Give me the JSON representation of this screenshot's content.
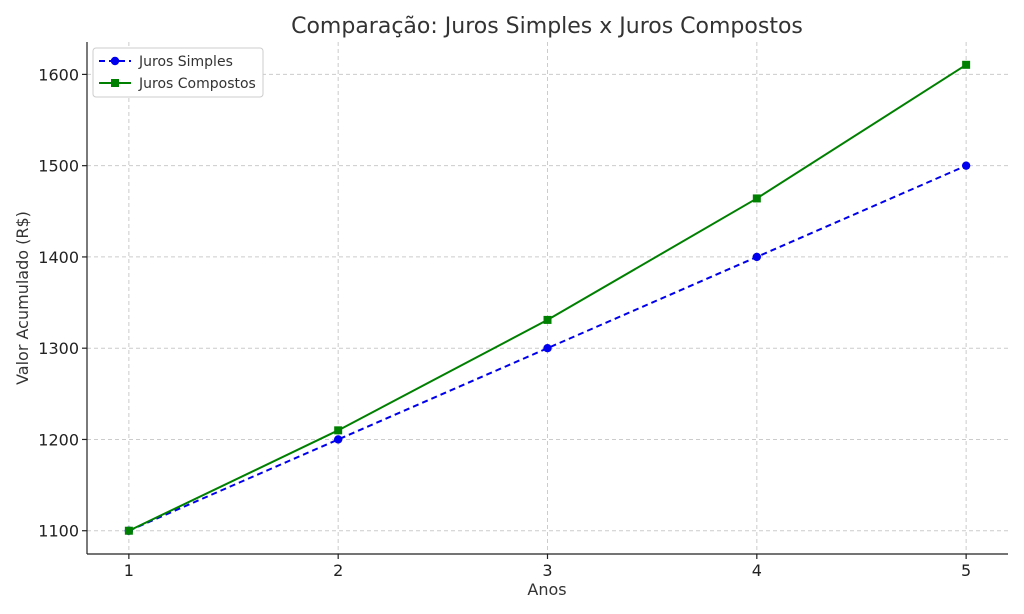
{
  "chart_data": {
    "type": "line",
    "title": "Comparação: Juros Simples x Juros Compostos",
    "xlabel": "Anos",
    "ylabel": "Valor Acumulado (R$)",
    "x": [
      1,
      2,
      3,
      4,
      5
    ],
    "xlim": [
      0.8,
      5.2
    ],
    "ylim": [
      1074.5,
      1635.5
    ],
    "xticks": [
      1,
      2,
      3,
      4,
      5
    ],
    "yticks": [
      1100,
      1200,
      1300,
      1400,
      1500,
      1600
    ],
    "grid": true,
    "legend_position": "top-left",
    "series": [
      {
        "name": "Juros Simples",
        "values": [
          1100,
          1200,
          1300,
          1400,
          1500
        ],
        "color": "#0000ee",
        "line_style": "dashed",
        "marker": "circle"
      },
      {
        "name": "Juros Compostos",
        "values": [
          1100,
          1210,
          1331,
          1464.1,
          1610.51
        ],
        "color": "#008000",
        "line_style": "solid",
        "marker": "square"
      }
    ]
  }
}
